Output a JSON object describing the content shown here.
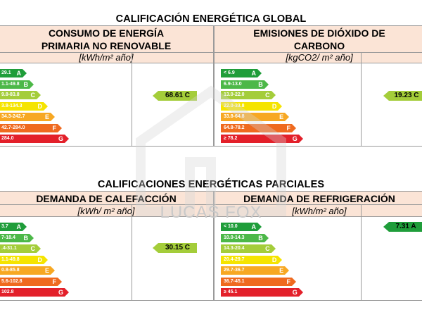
{
  "global": {
    "title": "CALIFICACIÓN ENERGÉTICA GLOBAL",
    "left": {
      "title_line1": "CONSUMO DE ENERGÍA",
      "title_line2": "PRIMARIA NO RENOVABLE",
      "unit": "[kWh/m² año]",
      "bands": [
        {
          "range": "29.1",
          "letter": "A"
        },
        {
          "range": "1.1-49.8",
          "letter": "B"
        },
        {
          "range": "9.8-83.8",
          "letter": "C"
        },
        {
          "range": "3.8-134.3",
          "letter": "D"
        },
        {
          "range": "34.3-242.7",
          "letter": "E"
        },
        {
          "range": "42.7-284.0",
          "letter": "F"
        },
        {
          "range": "284.0",
          "letter": "G"
        }
      ],
      "rating": "68.61 C"
    },
    "right": {
      "title_line1": "EMISIONES DE DIÓXIDO DE",
      "title_line2": "CARBONO",
      "unit": "[kgCO2/ m² año]",
      "bands": [
        {
          "range": "< 6.9",
          "letter": "A"
        },
        {
          "range": "6.9-13.0",
          "letter": "B"
        },
        {
          "range": "13.0-22.0",
          "letter": "C"
        },
        {
          "range": "22.0-33.8",
          "letter": "D"
        },
        {
          "range": "33.8-64.8",
          "letter": "E"
        },
        {
          "range": "64.8-78.2",
          "letter": "F"
        },
        {
          "range": "≥ 78.2",
          "letter": "G"
        }
      ],
      "rating": "19.23 C"
    }
  },
  "partial": {
    "title": "CALIFICACIONES ENERGÉTICAS PARCIALES",
    "left": {
      "title_line1": "DEMANDA DE CALEFACCIÓN",
      "unit": "[kWh/ m² año]",
      "bands": [
        {
          "range": "3.7",
          "letter": "A"
        },
        {
          "range": "7-18.4",
          "letter": "B"
        },
        {
          "range": ".4-31.1",
          "letter": "C"
        },
        {
          "range": "1.1-49.8",
          "letter": "D"
        },
        {
          "range": "0.8-85.8",
          "letter": "E"
        },
        {
          "range": "5.6-102.8",
          "letter": "F"
        },
        {
          "range": "102.8",
          "letter": "G"
        }
      ],
      "rating": "30.15 C"
    },
    "right": {
      "title_line1": "DEMANDA DE REFRIGERACIÓN",
      "unit": "[kWh/m² año]",
      "bands": [
        {
          "range": "< 10.0",
          "letter": "A"
        },
        {
          "range": "10.0-14.3",
          "letter": "B"
        },
        {
          "range": "14.3-20.4",
          "letter": "C"
        },
        {
          "range": "20.4-29.7",
          "letter": "D"
        },
        {
          "range": "29.7-36.7",
          "letter": "E"
        },
        {
          "range": "36.7-45.1",
          "letter": "F"
        },
        {
          "range": "≥ 45.1",
          "letter": "G"
        }
      ],
      "rating": "7.31 A"
    }
  },
  "watermark": "LUCAS FOX",
  "colors": {
    "A": "#1f9d3a",
    "B": "#4cb848",
    "C": "#a4cd3a",
    "D": "#f5e400",
    "E": "#f7a823",
    "F": "#ef6a1f",
    "G": "#e3202a",
    "header_bg": "#fbe4d6",
    "indicator_c": "#a4cd3a",
    "indicator_a": "#1f9d3a"
  }
}
